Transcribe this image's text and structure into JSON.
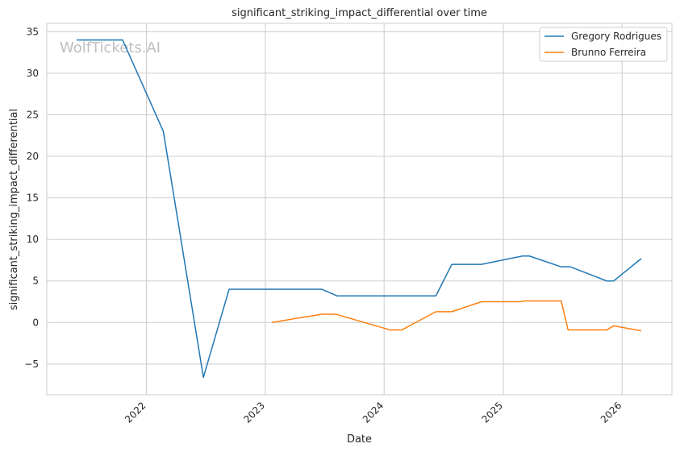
{
  "chart_data": {
    "type": "line",
    "title": "significant_striking_impact_differential over time",
    "xlabel": "Date",
    "ylabel": "significant_striking_impact_differential",
    "watermark": "WolfTickets.AI",
    "x_axis": "date",
    "xlim": [
      "2021-03-01",
      "2026-06-03"
    ],
    "ylim": [
      -8.7,
      36.0
    ],
    "x_ticks": [
      {
        "date": "2022-01-01",
        "label": "2022"
      },
      {
        "date": "2023-01-01",
        "label": "2023"
      },
      {
        "date": "2024-01-01",
        "label": "2024"
      },
      {
        "date": "2025-01-01",
        "label": "2025"
      },
      {
        "date": "2026-01-01",
        "label": "2026"
      }
    ],
    "y_ticks": [
      {
        "value": -5,
        "label": "−5"
      },
      {
        "value": 0,
        "label": "0"
      },
      {
        "value": 5,
        "label": "5"
      },
      {
        "value": 10,
        "label": "10"
      },
      {
        "value": 15,
        "label": "15"
      },
      {
        "value": 20,
        "label": "20"
      },
      {
        "value": 25,
        "label": "25"
      },
      {
        "value": 30,
        "label": "30"
      },
      {
        "value": 35,
        "label": "35"
      }
    ],
    "grid": true,
    "legend_position": "top-right",
    "series": [
      {
        "name": "Gregory Rodrigues",
        "color": "#1f77b4",
        "points": [
          [
            "2021-06-01",
            34.0
          ],
          [
            "2021-10-20",
            34.0
          ],
          [
            "2022-02-22",
            23.0
          ],
          [
            "2022-06-25",
            -6.6
          ],
          [
            "2022-09-12",
            4.0
          ],
          [
            "2023-06-24",
            4.0
          ],
          [
            "2023-08-10",
            3.2
          ],
          [
            "2024-01-20",
            3.2
          ],
          [
            "2024-06-08",
            3.2
          ],
          [
            "2024-07-27",
            7.0
          ],
          [
            "2024-10-26",
            7.0
          ],
          [
            "2025-03-01",
            8.0
          ],
          [
            "2025-03-22",
            8.0
          ],
          [
            "2025-06-28",
            6.7
          ],
          [
            "2025-07-26",
            6.7
          ],
          [
            "2025-11-15",
            5.0
          ],
          [
            "2025-12-06",
            5.0
          ],
          [
            "2026-03-01",
            7.7
          ]
        ]
      },
      {
        "name": "Brunno Ferreira",
        "color": "#ff7f0e",
        "points": [
          [
            "2023-01-21",
            0.0
          ],
          [
            "2023-06-24",
            1.0
          ],
          [
            "2023-08-05",
            1.0
          ],
          [
            "2024-01-20",
            -0.9
          ],
          [
            "2024-02-24",
            -0.9
          ],
          [
            "2024-06-08",
            1.3
          ],
          [
            "2024-07-27",
            1.3
          ],
          [
            "2024-10-26",
            2.5
          ],
          [
            "2025-02-22",
            2.5
          ],
          [
            "2025-03-08",
            2.6
          ],
          [
            "2025-06-28",
            2.6
          ],
          [
            "2025-07-19",
            -0.9
          ],
          [
            "2025-11-15",
            -0.9
          ],
          [
            "2025-12-06",
            -0.4
          ],
          [
            "2026-03-01",
            -1.0
          ]
        ]
      }
    ]
  }
}
